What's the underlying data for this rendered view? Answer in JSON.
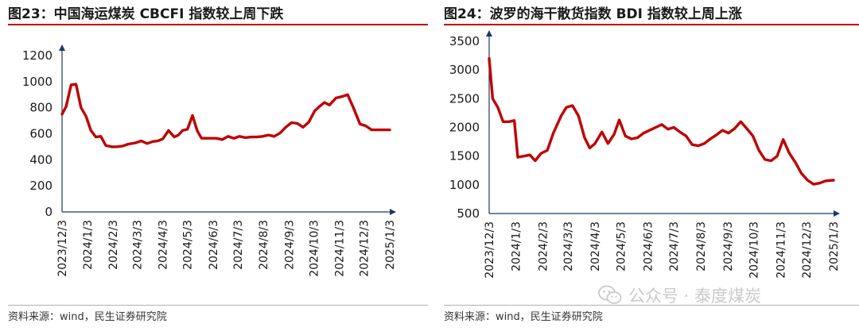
{
  "charts": [
    {
      "title": "图23：中国海运煤炭 CBCFI 指数较上周下跌",
      "source": "资料来源：wind，民生证券研究院"
    },
    {
      "title": "图24：波罗的海干散货指数 BDI 指数较上周上涨",
      "source": "资料来源：wind，民生证券研究院"
    }
  ],
  "watermark": {
    "text": "公众号 · 泰度煤炭",
    "icon": "wechat-icon"
  },
  "colors": {
    "line": "#c00000",
    "axis": "#1f3864",
    "title_rule": "#c00000"
  },
  "chart_data": [
    {
      "type": "line",
      "title": "图23：中国海运煤炭 CBCFI 指数较上周下跌",
      "xlabel": "",
      "ylabel": "",
      "ylim": [
        0,
        1200
      ],
      "yticks": [
        0,
        200,
        400,
        600,
        800,
        1000,
        1200
      ],
      "xlim": [
        "2023-12-03",
        "2025-01-03"
      ],
      "xticks": [
        "2023/12/3",
        "2024/1/3",
        "2024/2/3",
        "2024/3/3",
        "2024/4/3",
        "2024/5/3",
        "2024/6/3",
        "2024/7/3",
        "2024/8/3",
        "2024/9/3",
        "2024/10/3",
        "2024/11/3",
        "2024/12/3",
        "2025/1/3"
      ],
      "grid": false,
      "series": [
        {
          "x": [
            "2023-12-03",
            "2023-12-08",
            "2023-12-14",
            "2023-12-20",
            "2023-12-26",
            "2024-01-01",
            "2024-01-07",
            "2024-01-13",
            "2024-01-19",
            "2024-01-25",
            "2024-02-01",
            "2024-02-07",
            "2024-02-14",
            "2024-02-21",
            "2024-03-01",
            "2024-03-08",
            "2024-03-15",
            "2024-03-22",
            "2024-03-28",
            "2024-04-03",
            "2024-04-10",
            "2024-04-17",
            "2024-04-22",
            "2024-04-27",
            "2024-05-03",
            "2024-05-09",
            "2024-05-15",
            "2024-05-20",
            "2024-05-25",
            "2024-05-31",
            "2024-06-07",
            "2024-06-14",
            "2024-06-21",
            "2024-06-28",
            "2024-07-05",
            "2024-07-12",
            "2024-07-19",
            "2024-07-26",
            "2024-08-02",
            "2024-08-09",
            "2024-08-16",
            "2024-08-23",
            "2024-08-30",
            "2024-09-06",
            "2024-09-13",
            "2024-09-20",
            "2024-09-27",
            "2024-10-04",
            "2024-10-10",
            "2024-10-16",
            "2024-10-22",
            "2024-10-30",
            "2024-11-06",
            "2024-11-13",
            "2024-11-20",
            "2024-11-28",
            "2024-12-05",
            "2024-12-12",
            "2024-12-19",
            "2024-12-26",
            "2025-01-03"
          ],
          "y": [
            750,
            810,
            975,
            980,
            800,
            735,
            625,
            575,
            580,
            510,
            500,
            500,
            505,
            520,
            530,
            545,
            525,
            540,
            545,
            560,
            625,
            575,
            590,
            625,
            635,
            740,
            620,
            565,
            565,
            565,
            565,
            555,
            580,
            565,
            580,
            570,
            575,
            575,
            580,
            590,
            580,
            605,
            650,
            685,
            680,
            650,
            690,
            775,
            810,
            840,
            820,
            875,
            885,
            900,
            800,
            675,
            660,
            630,
            630,
            630,
            630
          ]
        }
      ]
    },
    {
      "type": "line",
      "title": "图24：波罗的海干散货指数 BDI 指数较上周上涨",
      "xlabel": "",
      "ylabel": "",
      "ylim": [
        500,
        3500
      ],
      "yticks": [
        500,
        1000,
        1500,
        2000,
        2500,
        3000,
        3500
      ],
      "xlim": [
        "2023-12-03",
        "2025-01-03"
      ],
      "xticks": [
        "2023/12/3",
        "2024/1/3",
        "2024/2/3",
        "2024/3/3",
        "2024/4/3",
        "2024/5/3",
        "2024/6/3",
        "2024/7/3",
        "2024/8/3",
        "2024/9/3",
        "2024/10/3",
        "2024/11/3",
        "2024/12/3",
        "2025/1/3"
      ],
      "grid": false,
      "series": [
        {
          "x": [
            "2023-12-03",
            "2023-12-07",
            "2023-12-13",
            "2023-12-19",
            "2023-12-26",
            "2024-01-01",
            "2024-01-05",
            "2024-01-12",
            "2024-01-19",
            "2024-01-25",
            "2024-02-01",
            "2024-02-08",
            "2024-02-15",
            "2024-02-24",
            "2024-03-01",
            "2024-03-08",
            "2024-03-15",
            "2024-03-22",
            "2024-03-28",
            "2024-04-03",
            "2024-04-11",
            "2024-04-18",
            "2024-04-25",
            "2024-05-01",
            "2024-05-08",
            "2024-05-15",
            "2024-05-22",
            "2024-05-29",
            "2024-06-05",
            "2024-06-12",
            "2024-06-19",
            "2024-06-26",
            "2024-07-03",
            "2024-07-10",
            "2024-07-17",
            "2024-07-24",
            "2024-07-31",
            "2024-08-07",
            "2024-08-14",
            "2024-08-21",
            "2024-08-28",
            "2024-09-04",
            "2024-09-11",
            "2024-09-18",
            "2024-09-25",
            "2024-10-02",
            "2024-10-09",
            "2024-10-16",
            "2024-10-23",
            "2024-10-30",
            "2024-11-06",
            "2024-11-13",
            "2024-11-20",
            "2024-11-27",
            "2024-12-04",
            "2024-12-11",
            "2024-12-18",
            "2024-12-25",
            "2025-01-03"
          ],
          "y": [
            3200,
            2500,
            2350,
            2100,
            2100,
            2120,
            1480,
            1500,
            1520,
            1420,
            1550,
            1600,
            1900,
            2200,
            2350,
            2380,
            2200,
            1820,
            1640,
            1720,
            1920,
            1720,
            1880,
            2130,
            1850,
            1800,
            1820,
            1900,
            1950,
            2000,
            2050,
            1970,
            2000,
            1920,
            1850,
            1700,
            1680,
            1720,
            1800,
            1870,
            1950,
            1900,
            1980,
            2100,
            1980,
            1850,
            1600,
            1440,
            1420,
            1500,
            1790,
            1550,
            1390,
            1200,
            1080,
            1010,
            1030,
            1070,
            1080
          ]
        }
      ]
    }
  ]
}
